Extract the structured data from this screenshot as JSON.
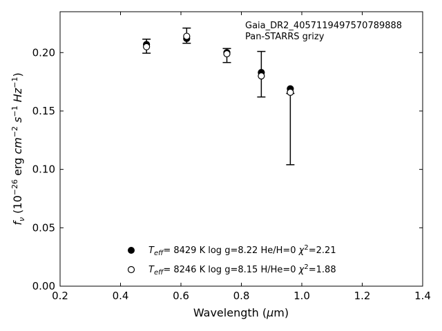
{
  "chart_data": {
    "type": "scatter",
    "xlabel": "Wavelength (μm)",
    "ylabel": "f_ν (10^-26 erg cm^-2 s^-1 Hz^-1)",
    "xlim": [
      0.2,
      1.4
    ],
    "ylim": [
      0.0,
      0.235
    ],
    "xticks": [
      "0.2",
      "0.4",
      "0.6",
      "0.8",
      "1.0",
      "1.2",
      "1.4"
    ],
    "yticks": [
      "0.00",
      "0.05",
      "0.10",
      "0.15",
      "0.20"
    ],
    "grid": false,
    "legend_position": "bottom-center",
    "annotation": [
      "Gaia_DR2_4057119497570789888",
      "Pan-STARRS grizy"
    ],
    "observed": {
      "x": [
        0.486,
        0.619,
        0.752,
        0.866,
        0.962
      ],
      "y": [
        0.2055,
        0.2145,
        0.1975,
        0.1815,
        0.1345
      ],
      "err": [
        0.006,
        0.0065,
        0.006,
        0.0195,
        0.0305
      ]
    },
    "series": [
      {
        "name": "Teff= 8429 K  log g=8.22  He/H=0  χ2=2.21",
        "marker": "filled-circle",
        "x": [
          0.486,
          0.619,
          0.752,
          0.866,
          0.962
        ],
        "y": [
          0.207,
          0.212,
          0.2,
          0.183,
          0.169
        ]
      },
      {
        "name": "Teff= 8246 K  log g=8.15  H/He=0  χ2=1.88",
        "marker": "open-circle",
        "x": [
          0.486,
          0.619,
          0.752,
          0.866,
          0.962
        ],
        "y": [
          0.205,
          0.214,
          0.199,
          0.18,
          0.166
        ]
      }
    ],
    "legend": [
      {
        "teff": "8429",
        "logg": "8.22",
        "comp": "He/H=0",
        "chi2": "2.21"
      },
      {
        "teff": "8246",
        "logg": "8.15",
        "comp": "H/He=0",
        "chi2": "1.88"
      }
    ]
  },
  "colors": {
    "marker": "#000000",
    "axis": "#000000",
    "background": "#ffffff"
  }
}
